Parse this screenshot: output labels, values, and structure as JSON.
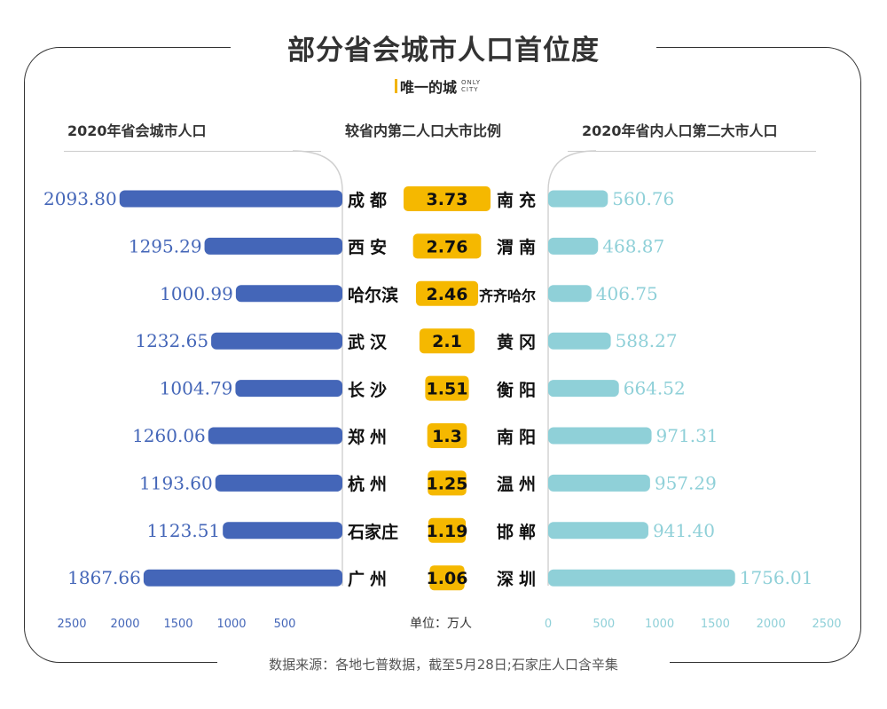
{
  "title": "部分省会城市人口首位度",
  "brand": {
    "name": "唯一的城",
    "sub_top": "ONLY",
    "sub_bottom": "CITY"
  },
  "headers": {
    "left": "2020年省会城市人口",
    "center": "较省内第二人口大市比例",
    "right": "2020年省内人口第二大市人口"
  },
  "unit_label": "单位：万人",
  "footer": "数据来源：各地七普数据，截至5月28日;石家庄人口含辛集",
  "colors": {
    "left_bar": "#4466b8",
    "right_bar": "#8fd0d8",
    "ratio_bg": "#f5b800",
    "left_text": "#4466b8",
    "right_text": "#8fd0d8"
  },
  "chart_data": {
    "type": "bar",
    "categories": [
      "成都",
      "西安",
      "哈尔滨",
      "武汉",
      "长沙",
      "郑州",
      "杭州",
      "石家庄",
      "广州"
    ],
    "series": [
      {
        "name": "2020年省会城市人口",
        "values": [
          2093.8,
          1295.29,
          1000.99,
          1232.65,
          1004.79,
          1260.06,
          1193.6,
          1123.51,
          1867.66
        ],
        "labels": [
          "2093.80",
          "1295.29",
          "1000.99",
          "1232.65",
          "1004.79",
          "1260.06",
          "1193.60",
          "1123.51",
          "1867.66"
        ]
      },
      {
        "name": "2020年省内人口第二大市人口",
        "values": [
          560.76,
          468.87,
          406.75,
          588.27,
          664.52,
          971.31,
          957.29,
          941.4,
          1756.01
        ],
        "labels": [
          "560.76",
          "468.87",
          "406.75",
          "588.27",
          "664.52",
          "971.31",
          "957.29",
          "941.40",
          "1756.01"
        ]
      }
    ],
    "second_cities": [
      "南充",
      "渭南",
      "齐齐哈尔",
      "黄冈",
      "衡阳",
      "南阳",
      "温州",
      "邯郸",
      "深圳"
    ],
    "ratios": [
      3.73,
      2.76,
      2.46,
      2.1,
      1.51,
      1.3,
      1.25,
      1.19,
      1.06
    ],
    "ratio_labels": [
      "3.73",
      "2.76",
      "2.46",
      "2.1",
      "1.51",
      "1.3",
      "1.25",
      "1.19",
      "1.06"
    ],
    "left_axis_ticks": [
      "2500",
      "2000",
      "1500",
      "1000",
      "500"
    ],
    "right_axis_ticks": [
      "0",
      "500",
      "1000",
      "1500",
      "2000",
      "2500"
    ],
    "xlim": [
      0,
      2500
    ]
  }
}
